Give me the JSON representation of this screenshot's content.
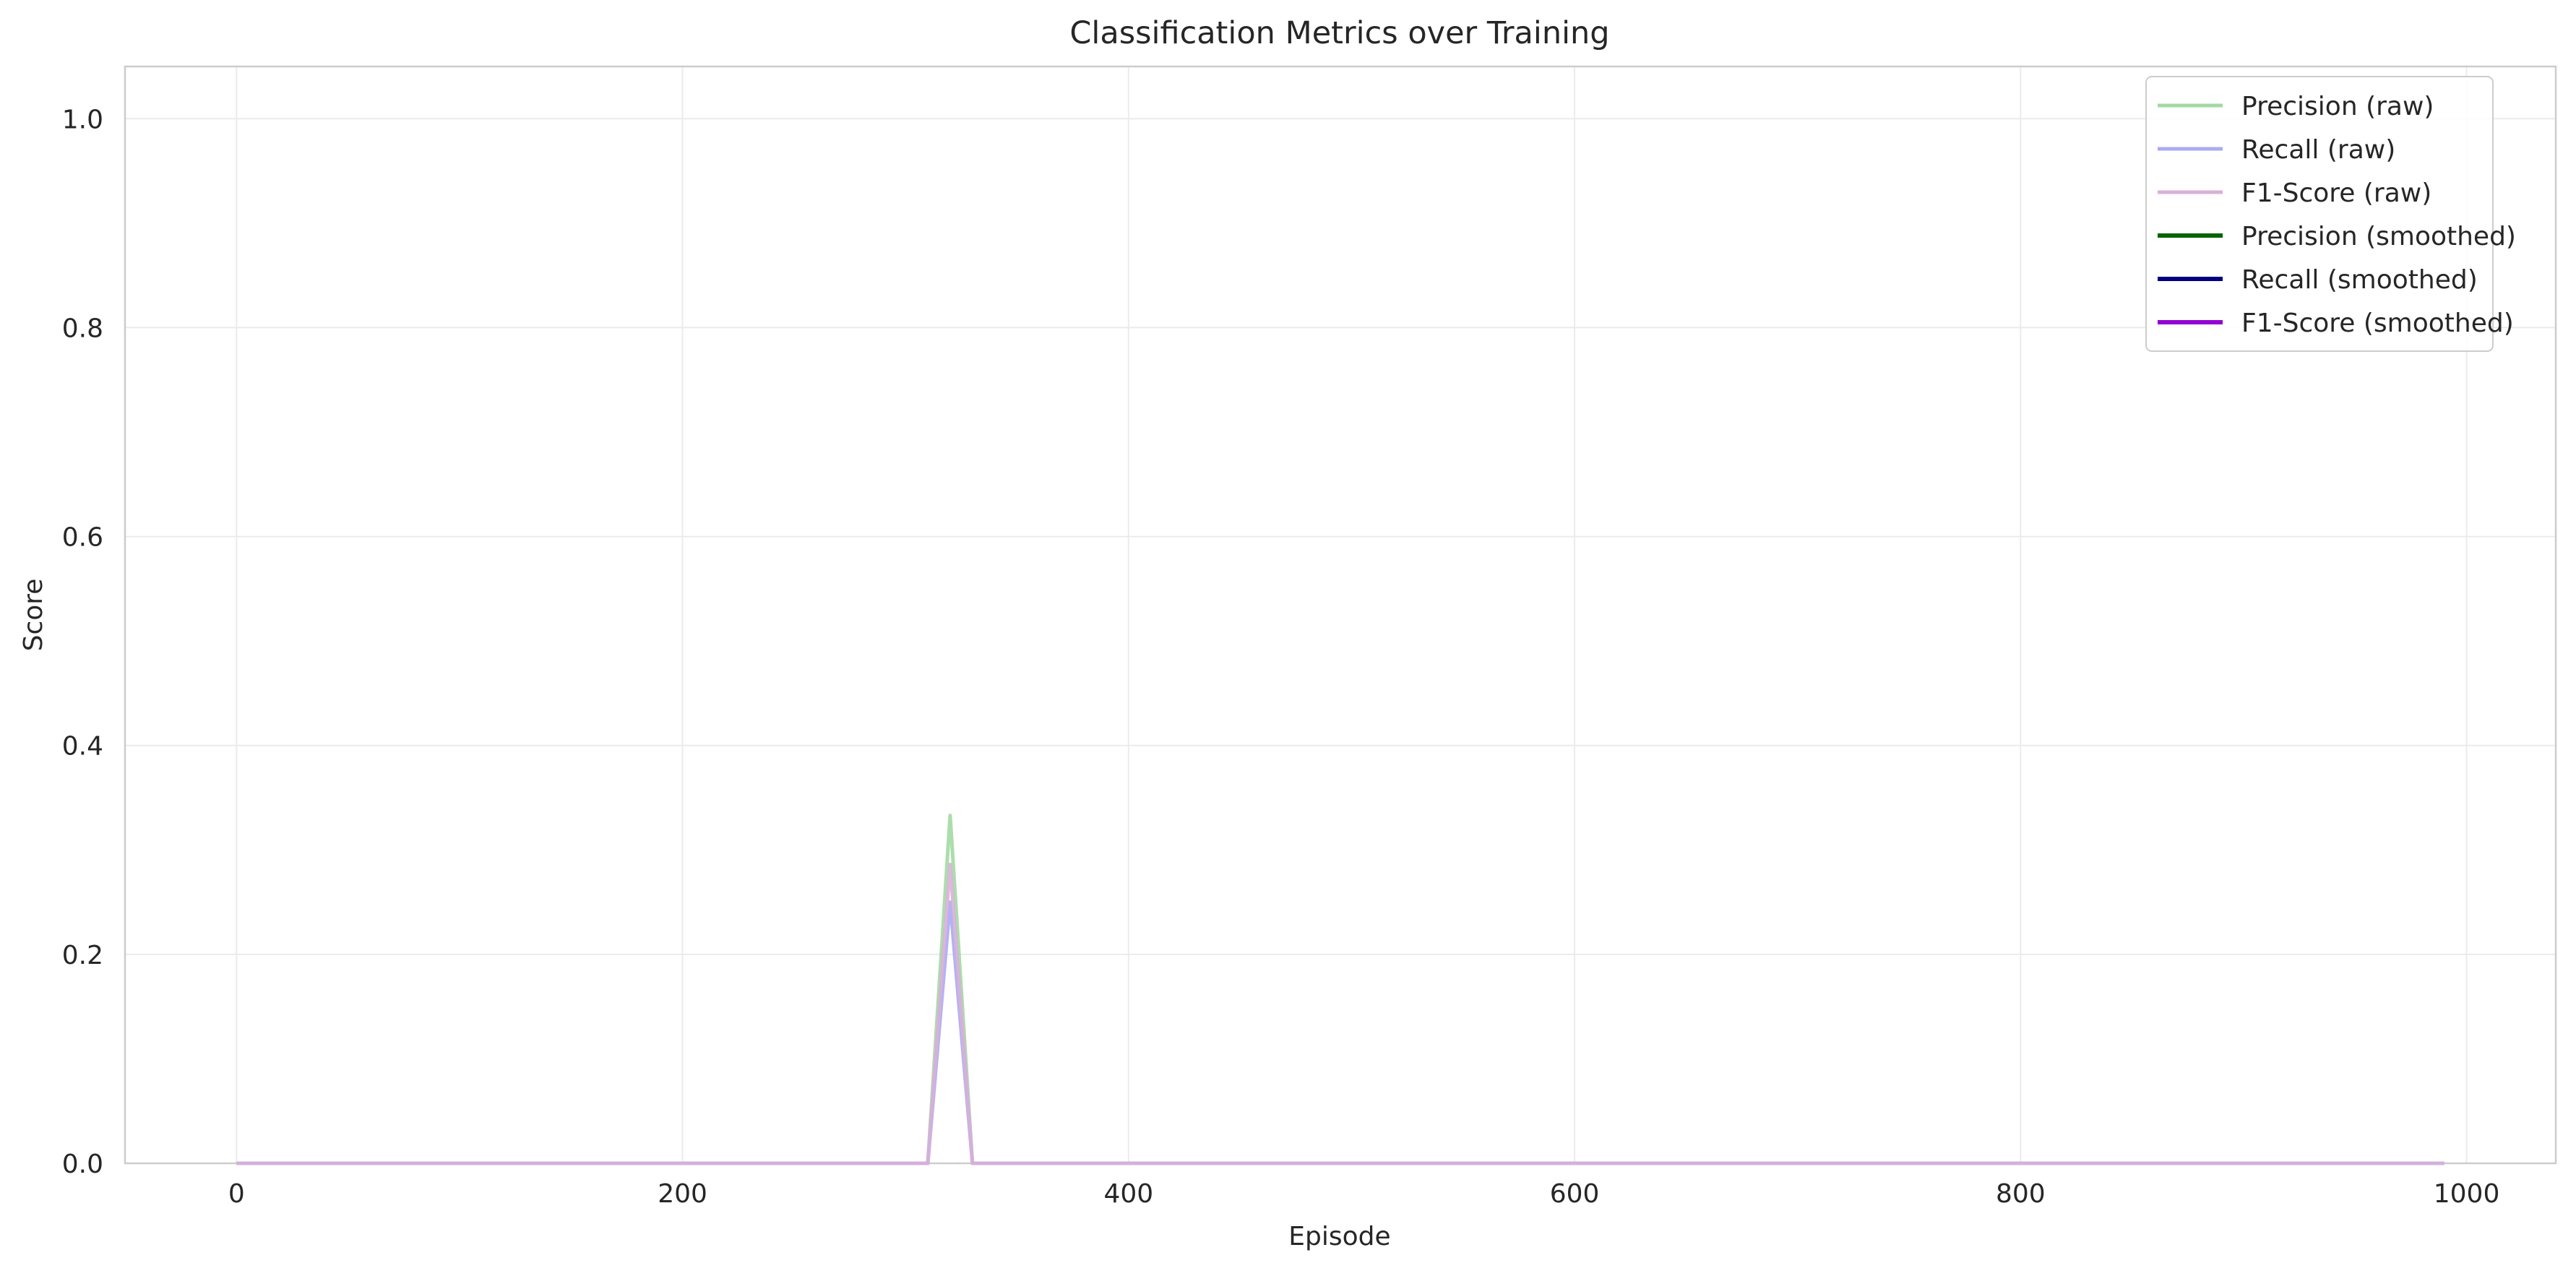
{
  "chart_data": {
    "type": "line",
    "title": "Classification Metrics over Training",
    "xlabel": "Episode",
    "ylabel": "Score",
    "xlim": [
      -50,
      1040
    ],
    "ylim": [
      0,
      1.05
    ],
    "xticks": [
      0,
      200,
      400,
      600,
      800,
      1000
    ],
    "yticks": [
      0.0,
      0.2,
      0.4,
      0.6,
      0.8,
      1.0
    ],
    "xtick_labels": [
      "0",
      "200",
      "400",
      "600",
      "800",
      "1000"
    ],
    "ytick_labels": [
      "0.0",
      "0.2",
      "0.4",
      "0.6",
      "0.8",
      "1.0"
    ],
    "grid": true,
    "legend_position": "top-right",
    "series": [
      {
        "name": "Precision (raw)",
        "color": "#a3d9a3",
        "style": "raw",
        "points": [
          [
            0,
            0
          ],
          [
            310,
            0
          ],
          [
            320,
            0.333
          ],
          [
            330,
            0
          ],
          [
            990,
            0
          ]
        ]
      },
      {
        "name": "Recall (raw)",
        "color": "#aaaaf5",
        "style": "raw",
        "points": [
          [
            0,
            0
          ],
          [
            310,
            0
          ],
          [
            320,
            0.25
          ],
          [
            330,
            0
          ],
          [
            990,
            0
          ]
        ]
      },
      {
        "name": "F1-Score (raw)",
        "color": "#d8b0d8",
        "style": "raw",
        "points": [
          [
            0,
            0
          ],
          [
            310,
            0
          ],
          [
            320,
            0.286
          ],
          [
            330,
            0
          ],
          [
            990,
            0
          ]
        ]
      },
      {
        "name": "Precision (smoothed)",
        "color": "#006400",
        "style": "smoothed",
        "points": []
      },
      {
        "name": "Recall (smoothed)",
        "color": "#000080",
        "style": "smoothed",
        "points": []
      },
      {
        "name": "F1-Score (smoothed)",
        "color": "#9400d3",
        "style": "smoothed",
        "points": []
      }
    ]
  }
}
